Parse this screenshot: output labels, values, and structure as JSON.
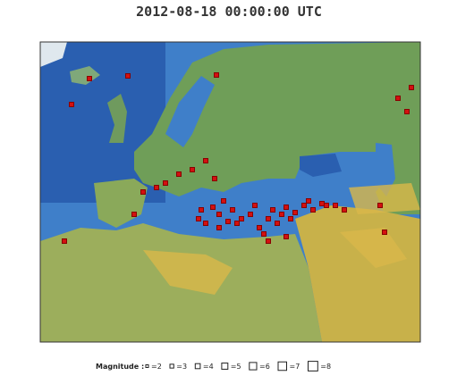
{
  "header": {
    "title": "2012-08-18 00:00:00 UTC"
  },
  "legend": {
    "label": "Magnitude :",
    "items": [
      "=2",
      "=3",
      "=4",
      "=5",
      "=6",
      "=7",
      "=8"
    ]
  }
}
